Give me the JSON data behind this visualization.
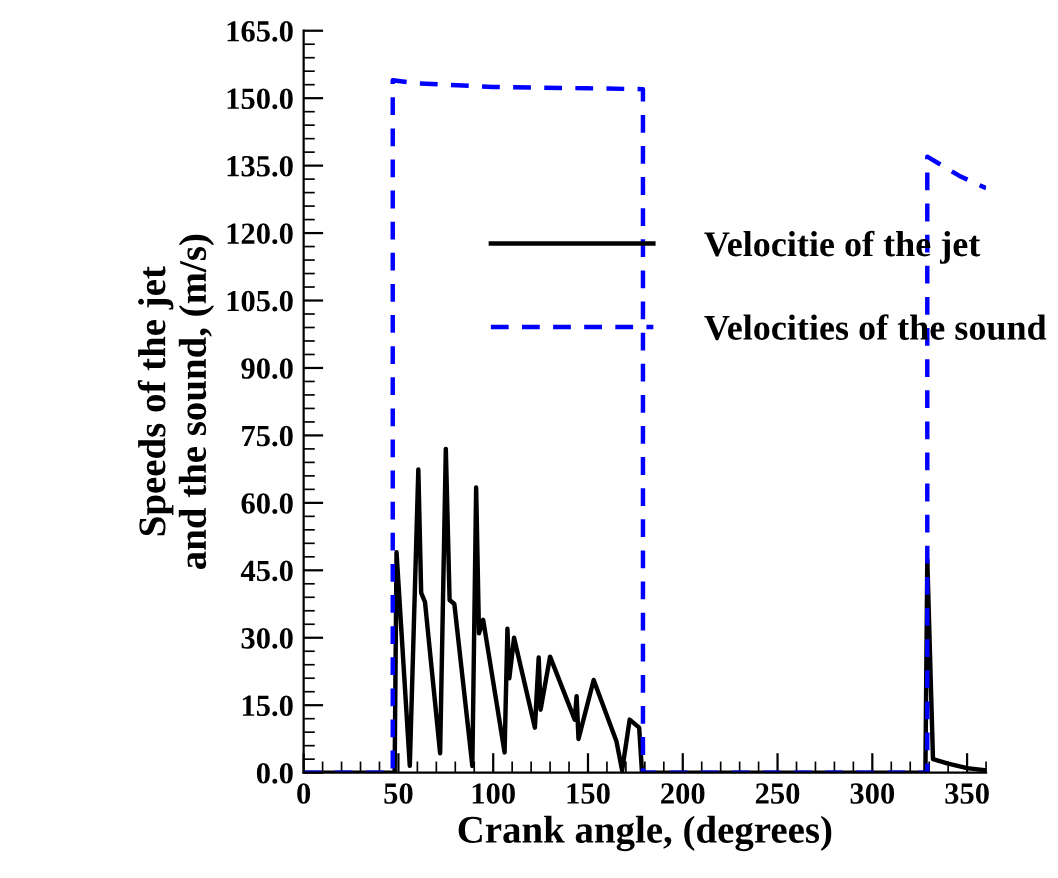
{
  "chart_data": {
    "type": "line",
    "xlabel": "Crank angle, (degrees)",
    "ylabel": "Speeds of the jet\nand the sound, (m/s)",
    "xlim": [
      0,
      360
    ],
    "xticks": [
      0,
      50,
      100,
      150,
      200,
      250,
      300,
      350
    ],
    "ylim": [
      0,
      165
    ],
    "yticks": [
      {
        "value": 0,
        "label": "0.0"
      },
      {
        "value": 15,
        "label": "15.0"
      },
      {
        "value": 30,
        "label": "30.0"
      },
      {
        "value": 45,
        "label": "45.0"
      },
      {
        "value": 60,
        "label": "60.0"
      },
      {
        "value": 75,
        "label": "75.0"
      },
      {
        "value": 90,
        "label": "90.0"
      },
      {
        "value": 105,
        "label": "105.0"
      },
      {
        "value": 120,
        "label": "120.0"
      },
      {
        "value": 135,
        "label": "135.0"
      },
      {
        "value": 150,
        "label": "150.0"
      },
      {
        "value": 165,
        "label": "165.0"
      }
    ],
    "grid": false,
    "legend": "top right",
    "marker": "none",
    "series": [
      {
        "name": "Velocitie of the jet",
        "color": "#000000",
        "line_style": "solid",
        "x": [
          0,
          48,
          49,
          56,
          60.5,
          62,
          64,
          72,
          75,
          77,
          79.5,
          89,
          91,
          92.5,
          94.7,
          106,
          107.5,
          108.5,
          111,
          122,
          124,
          125,
          130,
          143,
          144,
          145,
          153,
          165,
          168,
          172,
          177,
          178.5,
          328,
          329,
          332,
          340,
          350,
          360
        ],
        "values": [
          0,
          0,
          49,
          1.5,
          67.4,
          40,
          38,
          4.3,
          72,
          38.4,
          37.5,
          1.5,
          63.4,
          31,
          34,
          4.5,
          32,
          21,
          30,
          10,
          25.6,
          14,
          25.8,
          11.8,
          17,
          7.5,
          20.6,
          7,
          0.5,
          11.8,
          10,
          0,
          0,
          47.4,
          3,
          2,
          1,
          0.5
        ]
      },
      {
        "name": "Velocities of the sound",
        "color": "#0000ff",
        "line_style": "dashed",
        "x": [
          0,
          47,
          47,
          60,
          100,
          150,
          179,
          179,
          329,
          329,
          346,
          360
        ],
        "values": [
          0,
          0,
          154,
          153.3,
          152.5,
          152.2,
          152,
          0,
          0,
          137,
          132.7,
          130
        ]
      }
    ]
  }
}
